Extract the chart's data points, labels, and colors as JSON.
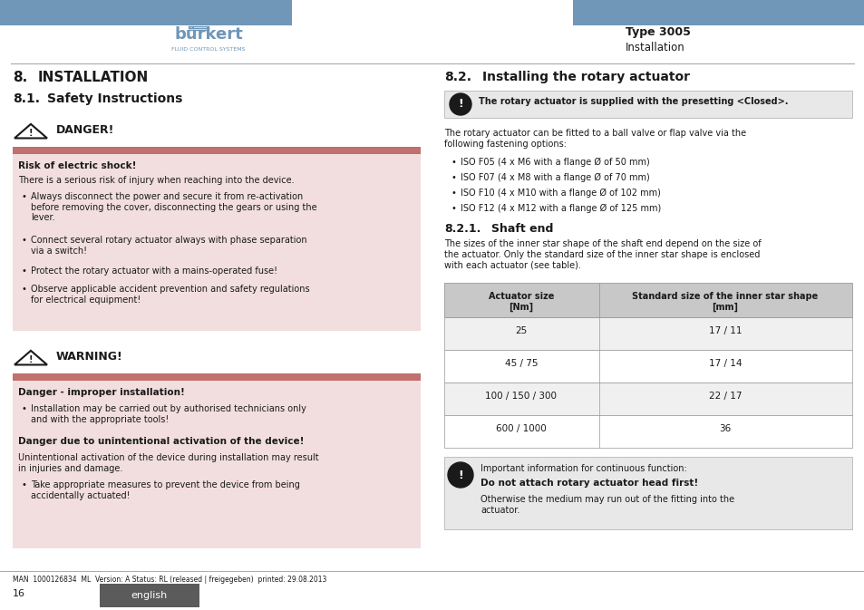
{
  "bg_color": "#ffffff",
  "header_blue": "#7096b8",
  "danger_bg": "#f2dede",
  "warning_bg": "#f2dede",
  "info_bg": "#e8e8e8",
  "red_bar": "#c0706d",
  "table_header_bg": "#c8c8c8",
  "table_border": "#999999",
  "table_row1_bg": "#ffffff",
  "table_row2_bg": "#ffffff",
  "type_text": "Type 3005",
  "sub_text": "Installation",
  "footer_btn_bg": "#5b5b5b",
  "footer_btn_text": "english",
  "page_num": "16",
  "footer_line": "MAN  1000126834  ML  Version: A Status: RL (released | freigegeben)  printed: 29.08.2013"
}
